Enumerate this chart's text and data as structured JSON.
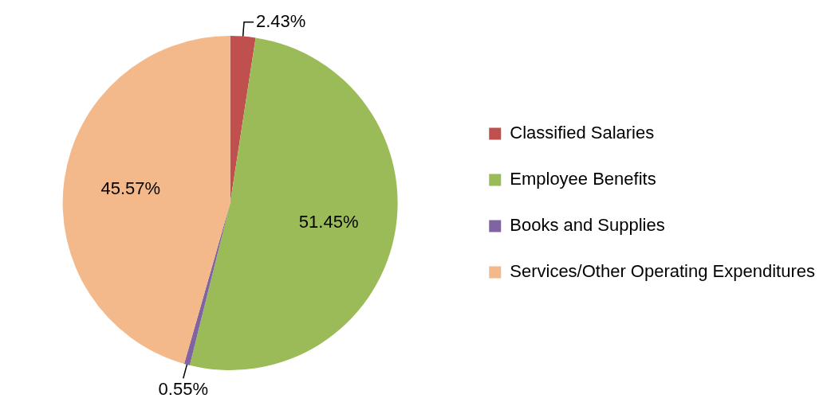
{
  "chart_data": {
    "type": "pie",
    "categories": [
      "Classified Salaries",
      "Employee Benefits",
      "Books and Supplies",
      "Services/Other Operating Expenditures"
    ],
    "values": [
      2.43,
      51.45,
      0.55,
      45.57
    ],
    "colors": [
      "#c0504d",
      "#9bbb59",
      "#8064a2",
      "#f4b98b"
    ],
    "value_labels": [
      "2.43%",
      "51.45%",
      "0.55%",
      "45.57%"
    ],
    "legend": "right"
  }
}
